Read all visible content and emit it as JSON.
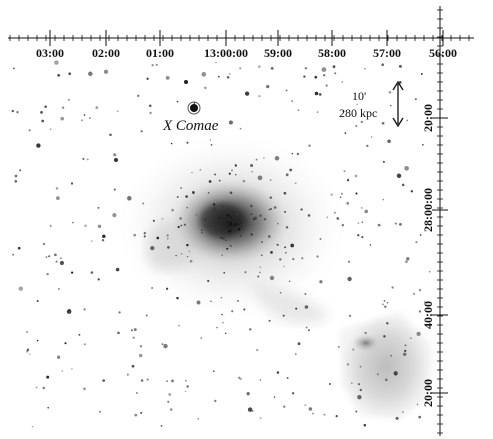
{
  "top_axis": {
    "ticks": [
      "03:00",
      "02:00",
      "01:00",
      "13:00:00",
      "59:00",
      "58:00",
      "57:00",
      "56:00"
    ]
  },
  "right_axis": {
    "ticks": [
      "20:00",
      "28:00:00",
      "40:00",
      "20:00"
    ]
  },
  "annotations": {
    "object_label": "X Comae",
    "scale_angle": "10'",
    "scale_length": "280 kpc"
  }
}
